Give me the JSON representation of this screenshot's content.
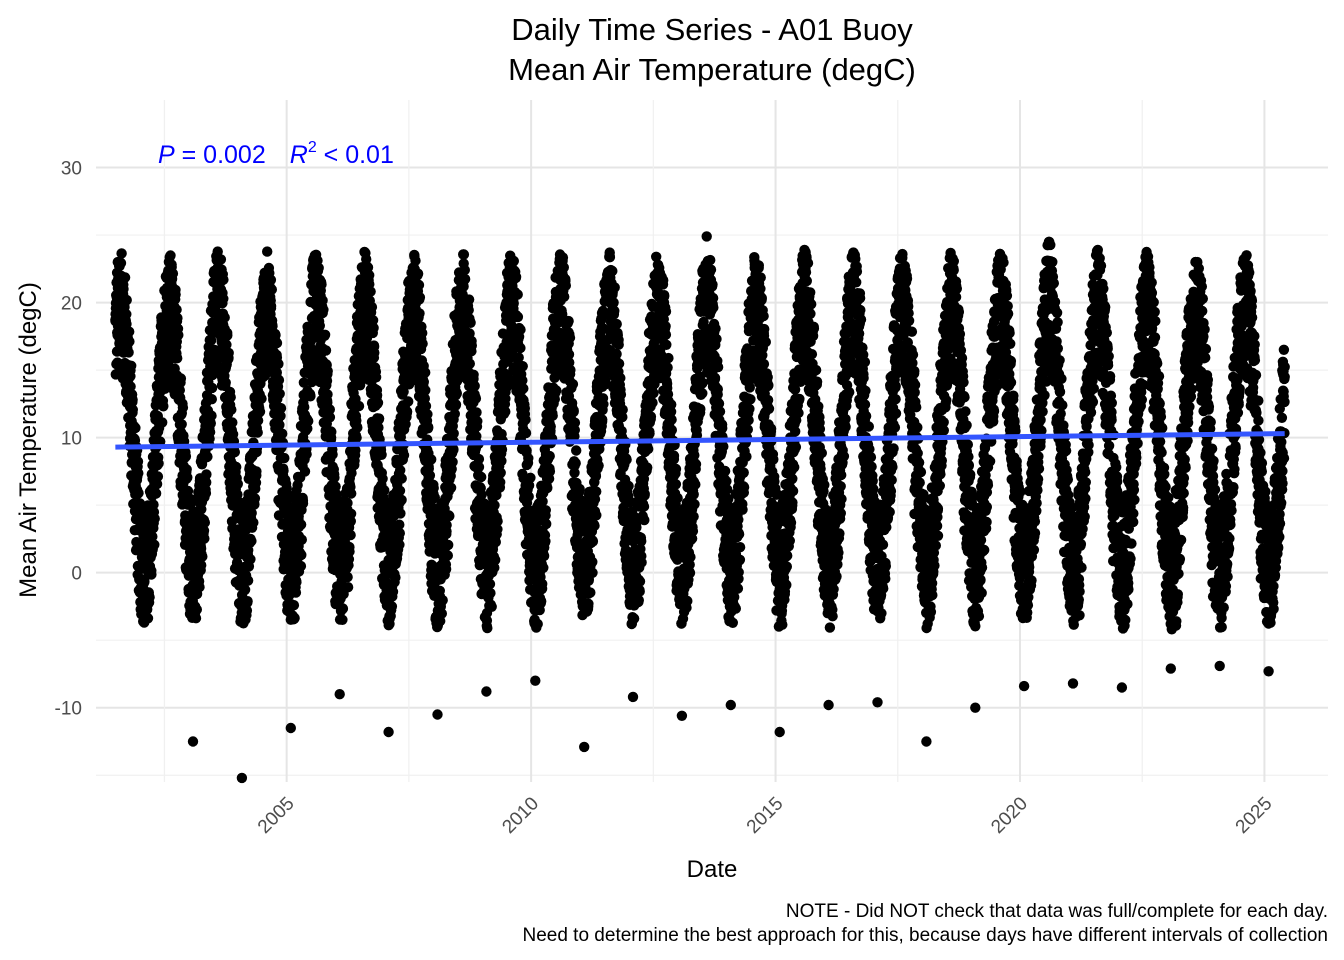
{
  "chart_data": {
    "type": "scatter",
    "title": "Daily Time Series - A01 Buoy",
    "subtitle": "Mean Air Temperature (degC)",
    "xlabel": "Date",
    "ylabel": "Mean Air Temperature (degC)",
    "x_range": [
      "2001-07-01",
      "2025-06-01"
    ],
    "xlim": [
      2001.1,
      2026.3
    ],
    "ylim": [
      -15.5,
      35
    ],
    "x_ticks": [
      2005,
      2010,
      2015,
      2020,
      2025
    ],
    "x_tick_labels": [
      "2005",
      "2010",
      "2015",
      "2020",
      "2025"
    ],
    "y_ticks": [
      -10,
      0,
      10,
      20,
      30
    ],
    "y_tick_labels": [
      "-10",
      "0",
      "10",
      "20",
      "30"
    ],
    "grid": true,
    "point_color": "#000000",
    "trend_color": "#3355ff",
    "annotation_color": "#0000ff",
    "annotation": {
      "p_symbol": "P",
      "p_text": " = 0.002",
      "r_symbol": "R",
      "r_sup": "2",
      "r_text": " < 0.01"
    },
    "caption": [
      "NOTE - Did NOT check that data was full/complete for each day.",
      "Need to determine the best approach for this, because days have different intervals of collection"
    ],
    "trend_line": {
      "start": {
        "x": "2001-07-01",
        "y": 9.3
      },
      "end": {
        "x": "2025-06-01",
        "y": 10.3
      }
    },
    "series": [
      {
        "annual_peaks": [
          {
            "x": "2001-08-01",
            "y": 22.7
          },
          {
            "x": "2002-08-05",
            "y": 22.3
          },
          {
            "x": "2003-08-05",
            "y": 22.6
          },
          {
            "x": "2004-08-05",
            "y": 21.0
          },
          {
            "x": "2005-08-05",
            "y": 22.4
          },
          {
            "x": "2006-08-05",
            "y": 21.5
          },
          {
            "x": "2007-08-05",
            "y": 22.6
          },
          {
            "x": "2008-08-05",
            "y": 21.4
          },
          {
            "x": "2009-08-05",
            "y": 22.7
          },
          {
            "x": "2010-08-05",
            "y": 23.0
          },
          {
            "x": "2011-08-05",
            "y": 22.3
          },
          {
            "x": "2012-08-05",
            "y": 22.8
          },
          {
            "x": "2013-08-05",
            "y": 24.9
          },
          {
            "x": "2014-08-05",
            "y": 22.1
          },
          {
            "x": "2015-08-05",
            "y": 23.9
          },
          {
            "x": "2016-08-05",
            "y": 23.7
          },
          {
            "x": "2017-08-05",
            "y": 21.8
          },
          {
            "x": "2018-08-05",
            "y": 21.1
          },
          {
            "x": "2019-08-05",
            "y": 23.6
          },
          {
            "x": "2020-08-05",
            "y": 24.5
          },
          {
            "x": "2021-08-05",
            "y": 23.9
          },
          {
            "x": "2022-08-05",
            "y": 22.6
          },
          {
            "x": "2023-08-05",
            "y": 23.0
          },
          {
            "x": "2024-08-05",
            "y": 21.8
          }
        ],
        "annual_troughs": [
          {
            "x": "2002-02-01",
            "y": -3.7
          },
          {
            "x": "2003-02-01",
            "y": -12.5
          },
          {
            "x": "2004-02-01",
            "y": -15.2
          },
          {
            "x": "2005-02-01",
            "y": -11.5
          },
          {
            "x": "2006-02-01",
            "y": -9.0
          },
          {
            "x": "2007-02-01",
            "y": -11.8
          },
          {
            "x": "2008-02-01",
            "y": -10.5
          },
          {
            "x": "2009-02-01",
            "y": -8.8
          },
          {
            "x": "2010-02-01",
            "y": -8.0
          },
          {
            "x": "2011-02-01",
            "y": -12.9
          },
          {
            "x": "2012-02-01",
            "y": -9.2
          },
          {
            "x": "2013-02-01",
            "y": -10.6
          },
          {
            "x": "2014-02-01",
            "y": -9.8
          },
          {
            "x": "2015-02-01",
            "y": -11.8
          },
          {
            "x": "2016-02-01",
            "y": -9.8
          },
          {
            "x": "2017-02-01",
            "y": -9.6
          },
          {
            "x": "2018-02-01",
            "y": -12.5
          },
          {
            "x": "2019-02-01",
            "y": -10.0
          },
          {
            "x": "2020-02-01",
            "y": -8.4
          },
          {
            "x": "2021-02-01",
            "y": -8.2
          },
          {
            "x": "2022-02-01",
            "y": -8.5
          },
          {
            "x": "2023-02-01",
            "y": -7.1
          },
          {
            "x": "2024-02-01",
            "y": -6.9
          },
          {
            "x": "2025-02-01",
            "y": -7.3
          }
        ],
        "last": {
          "x": "2025-06-01",
          "y": 14.5
        }
      }
    ]
  }
}
